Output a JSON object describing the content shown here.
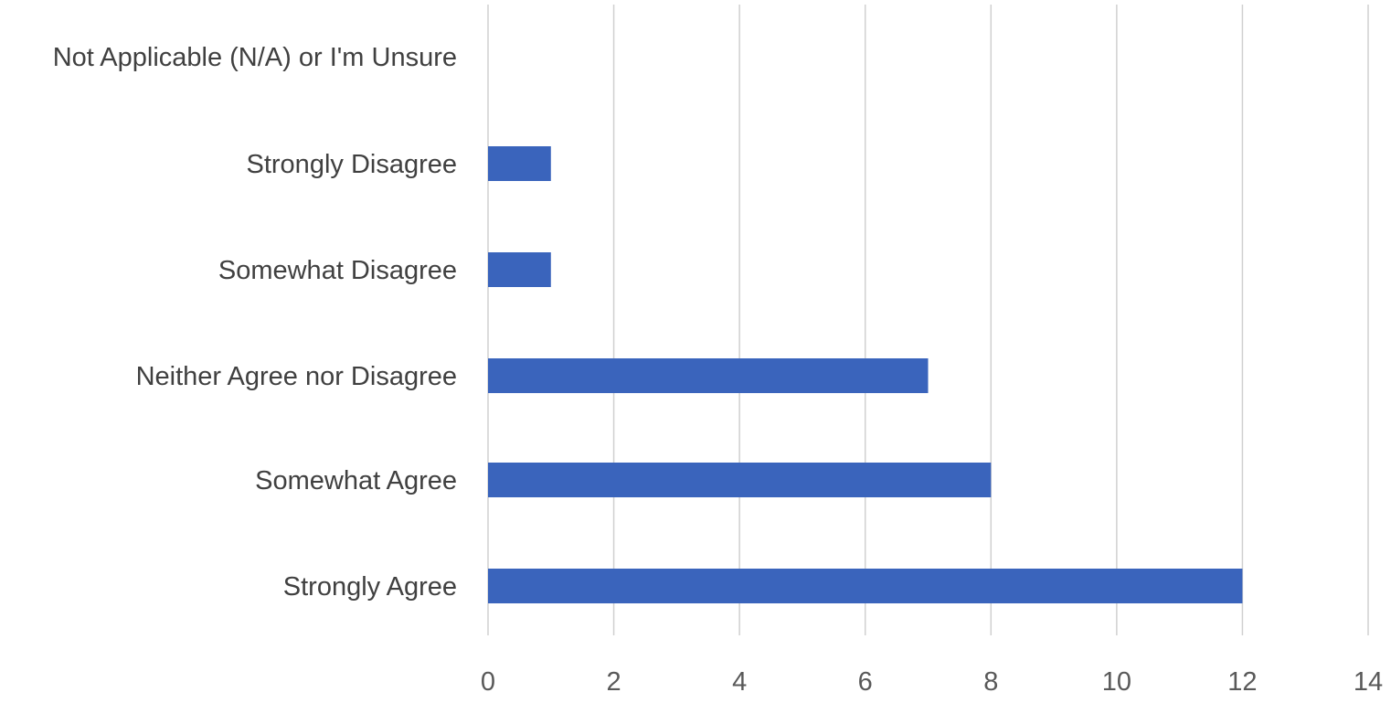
{
  "chart_data": {
    "type": "bar",
    "orientation": "horizontal",
    "title": "",
    "xlabel": "",
    "ylabel": "",
    "categories": [
      "Not Applicable (N/A) or I'm Unsure",
      "Strongly Disagree",
      "Somewhat Disagree",
      "Neither Agree nor Disagree",
      "Somewhat Agree",
      "Strongly Agree"
    ],
    "values": [
      0,
      1,
      1,
      7,
      8,
      12
    ],
    "xlim": [
      0,
      14
    ],
    "ticks": [
      "0",
      "2",
      "4",
      "6",
      "8",
      "10",
      "12",
      "14"
    ],
    "grid": "vertical",
    "legend": "none",
    "bar_color": "#3a64bc",
    "grid_color": "#d0d0d0"
  }
}
